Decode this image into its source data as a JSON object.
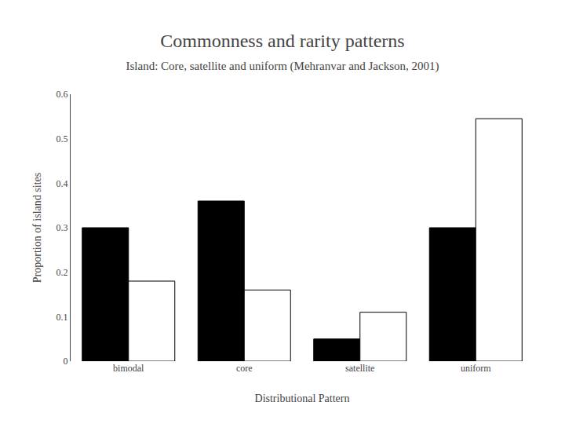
{
  "chart_data": {
    "type": "bar",
    "title": "Commonness and rarity patterns",
    "subtitle": "Island: Core, satellite and uniform (Mehranvar and Jackson, 2001)",
    "xlabel": "Distributional Pattern",
    "ylabel": "Proportion of island sites",
    "categories": [
      "bimodal",
      "core",
      "satellite",
      "uniform"
    ],
    "series": [
      {
        "color": "#000000",
        "values": [
          0.3,
          0.36,
          0.05,
          0.3
        ]
      },
      {
        "color": "#ffffff",
        "values": [
          0.18,
          0.16,
          0.11,
          0.545
        ]
      }
    ],
    "ylim": [
      0,
      0.6
    ],
    "yticks": [
      0,
      0.1,
      0.2,
      0.3,
      0.4,
      0.5,
      0.6
    ],
    "grid": false
  }
}
